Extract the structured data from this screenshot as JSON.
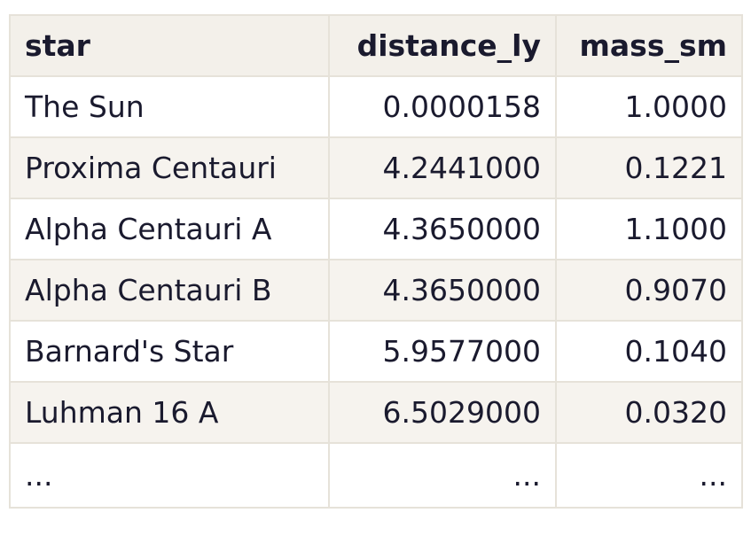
{
  "table": {
    "columns": [
      "star",
      "distance_ly",
      "mass_sm"
    ],
    "rows": [
      [
        "The Sun",
        "0.0000158",
        "1.0000"
      ],
      [
        "Proxima Centauri",
        "4.2441000",
        "0.1221"
      ],
      [
        "Alpha Centauri A",
        "4.3650000",
        "1.1000"
      ],
      [
        "Alpha Centauri B",
        "4.3650000",
        "0.9070"
      ],
      [
        "Barnard's Star",
        "5.9577000",
        "0.1040"
      ],
      [
        "Luhman 16 A",
        "6.5029000",
        "0.0320"
      ],
      [
        "...",
        "...",
        "..."
      ]
    ]
  },
  "colors": {
    "header_bg": "#f3f0ea",
    "row_alt_bg": "#f6f3ee",
    "border": "#e6e2d9",
    "text": "#1a1a2e"
  }
}
